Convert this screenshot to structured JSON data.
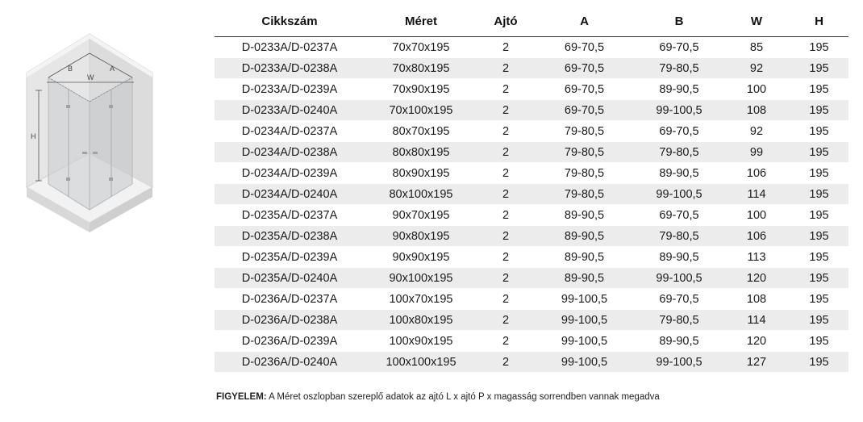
{
  "diagram": {
    "labels": {
      "b": "B",
      "w": "W",
      "a": "A",
      "h": "H"
    }
  },
  "table": {
    "headers": [
      "Cikkszám",
      "Méret",
      "Ajtó",
      "A",
      "B",
      "W",
      "H"
    ],
    "rows": [
      [
        "D-0233A/D-0237A",
        "70x70x195",
        "2",
        "69-70,5",
        "69-70,5",
        "85",
        "195"
      ],
      [
        "D-0233A/D-0238A",
        "70x80x195",
        "2",
        "69-70,5",
        "79-80,5",
        "92",
        "195"
      ],
      [
        "D-0233A/D-0239A",
        "70x90x195",
        "2",
        "69-70,5",
        "89-90,5",
        "100",
        "195"
      ],
      [
        "D-0233A/D-0240A",
        "70x100x195",
        "2",
        "69-70,5",
        "99-100,5",
        "108",
        "195"
      ],
      [
        "D-0234A/D-0237A",
        "80x70x195",
        "2",
        "79-80,5",
        "69-70,5",
        "92",
        "195"
      ],
      [
        "D-0234A/D-0238A",
        "80x80x195",
        "2",
        "79-80,5",
        "79-80,5",
        "99",
        "195"
      ],
      [
        "D-0234A/D-0239A",
        "80x90x195",
        "2",
        "79-80,5",
        "89-90,5",
        "106",
        "195"
      ],
      [
        "D-0234A/D-0240A",
        "80x100x195",
        "2",
        "79-80,5",
        "99-100,5",
        "114",
        "195"
      ],
      [
        "D-0235A/D-0237A",
        "90x70x195",
        "2",
        "89-90,5",
        "69-70,5",
        "100",
        "195"
      ],
      [
        "D-0235A/D-0238A",
        "90x80x195",
        "2",
        "89-90,5",
        "79-80,5",
        "106",
        "195"
      ],
      [
        "D-0235A/D-0239A",
        "90x90x195",
        "2",
        "89-90,5",
        "89-90,5",
        "113",
        "195"
      ],
      [
        "D-0235A/D-0240A",
        "90x100x195",
        "2",
        "89-90,5",
        "99-100,5",
        "120",
        "195"
      ],
      [
        "D-0236A/D-0237A",
        "100x70x195",
        "2",
        "99-100,5",
        "69-70,5",
        "108",
        "195"
      ],
      [
        "D-0236A/D-0238A",
        "100x80x195",
        "2",
        "99-100,5",
        "79-80,5",
        "114",
        "195"
      ],
      [
        "D-0236A/D-0239A",
        "100x90x195",
        "2",
        "99-100,5",
        "89-90,5",
        "120",
        "195"
      ],
      [
        "D-0236A/D-0240A",
        "100x100x195",
        "2",
        "99-100,5",
        "99-100,5",
        "127",
        "195"
      ]
    ]
  },
  "note": {
    "label": "FIGYELEM:",
    "text": " A Méret oszlopban szereplő adatok az ajtó L x ajtó P x magasság sorrendben vannak megadva"
  }
}
